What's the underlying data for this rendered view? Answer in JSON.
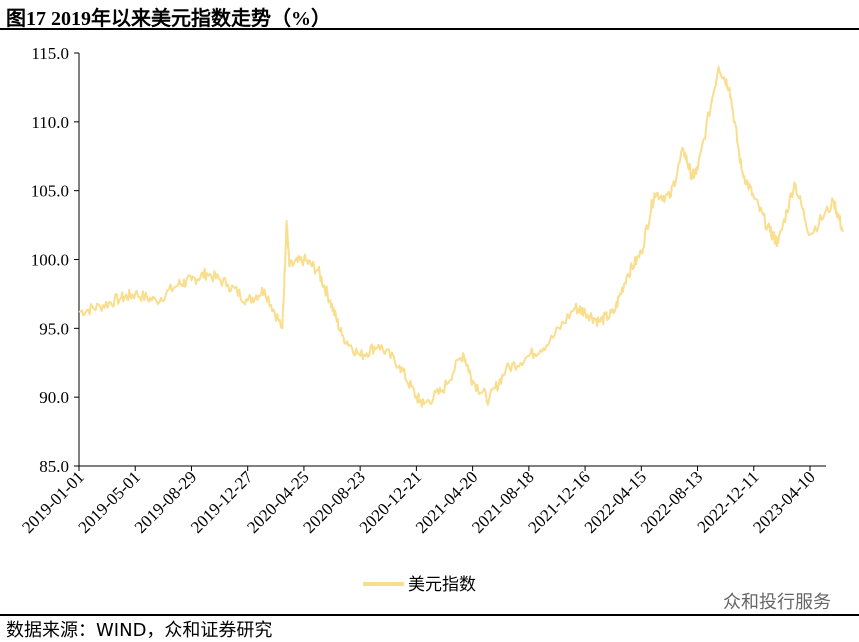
{
  "title": "图17 2019年以来美元指数走势（%）",
  "source": "数据来源：WIND，众和证券研究",
  "watermark": "众和投行服务",
  "chart_data": {
    "type": "line",
    "title": "图17 2019年以来美元指数走势（%）",
    "xlabel": "",
    "ylabel": "",
    "ylim": [
      85,
      115
    ],
    "yticks": [
      "85.0",
      "90.0",
      "95.0",
      "100.0",
      "105.0",
      "110.0",
      "115.0"
    ],
    "xticks": [
      "2019-01-01",
      "2019-05-01",
      "2019-08-29",
      "2019-12-27",
      "2020-04-25",
      "2020-08-23",
      "2020-12-21",
      "2021-04-20",
      "2021-08-18",
      "2021-12-16",
      "2022-04-15",
      "2022-08-13",
      "2022-12-11",
      "2023-04-10"
    ],
    "grid": false,
    "legend": "bottom-center",
    "series": [
      {
        "name": "美元指数",
        "color": "#F9DE8E",
        "x": [
          "2019-01-01",
          "2019-02-15",
          "2019-04-01",
          "2019-05-01",
          "2019-06-15",
          "2019-08-01",
          "2019-08-29",
          "2019-10-01",
          "2019-11-15",
          "2019-12-27",
          "2020-02-01",
          "2020-03-10",
          "2020-03-19",
          "2020-03-25",
          "2020-04-25",
          "2020-05-25",
          "2020-06-20",
          "2020-07-15",
          "2020-08-23",
          "2020-10-01",
          "2020-11-15",
          "2020-12-21",
          "2021-01-06",
          "2021-02-15",
          "2021-03-31",
          "2021-04-20",
          "2021-05-25",
          "2021-06-30",
          "2021-08-18",
          "2021-10-01",
          "2021-11-24",
          "2021-12-16",
          "2022-01-15",
          "2022-02-15",
          "2022-03-15",
          "2022-04-15",
          "2022-05-13",
          "2022-06-15",
          "2022-07-14",
          "2022-08-01",
          "2022-08-13",
          "2022-09-27",
          "2022-10-20",
          "2022-11-15",
          "2022-12-11",
          "2023-01-15",
          "2023-02-01",
          "2023-03-08",
          "2023-04-10",
          "2023-05-31",
          "2023-06-20"
        ],
        "values": [
          96.2,
          96.6,
          97.2,
          97.5,
          97.0,
          98.2,
          98.5,
          99.0,
          98.2,
          97.0,
          97.8,
          95.0,
          102.8,
          99.5,
          100.0,
          99.2,
          97.0,
          94.5,
          93.0,
          93.8,
          92.3,
          90.0,
          89.5,
          90.5,
          93.2,
          91.2,
          89.8,
          92.0,
          93.0,
          94.0,
          96.5,
          96.2,
          95.5,
          96.1,
          98.8,
          100.5,
          104.8,
          104.5,
          108.0,
          106.0,
          106.5,
          114.0,
          112.5,
          106.5,
          104.5,
          102.0,
          101.2,
          105.6,
          101.8,
          104.2,
          102.0
        ]
      }
    ]
  }
}
